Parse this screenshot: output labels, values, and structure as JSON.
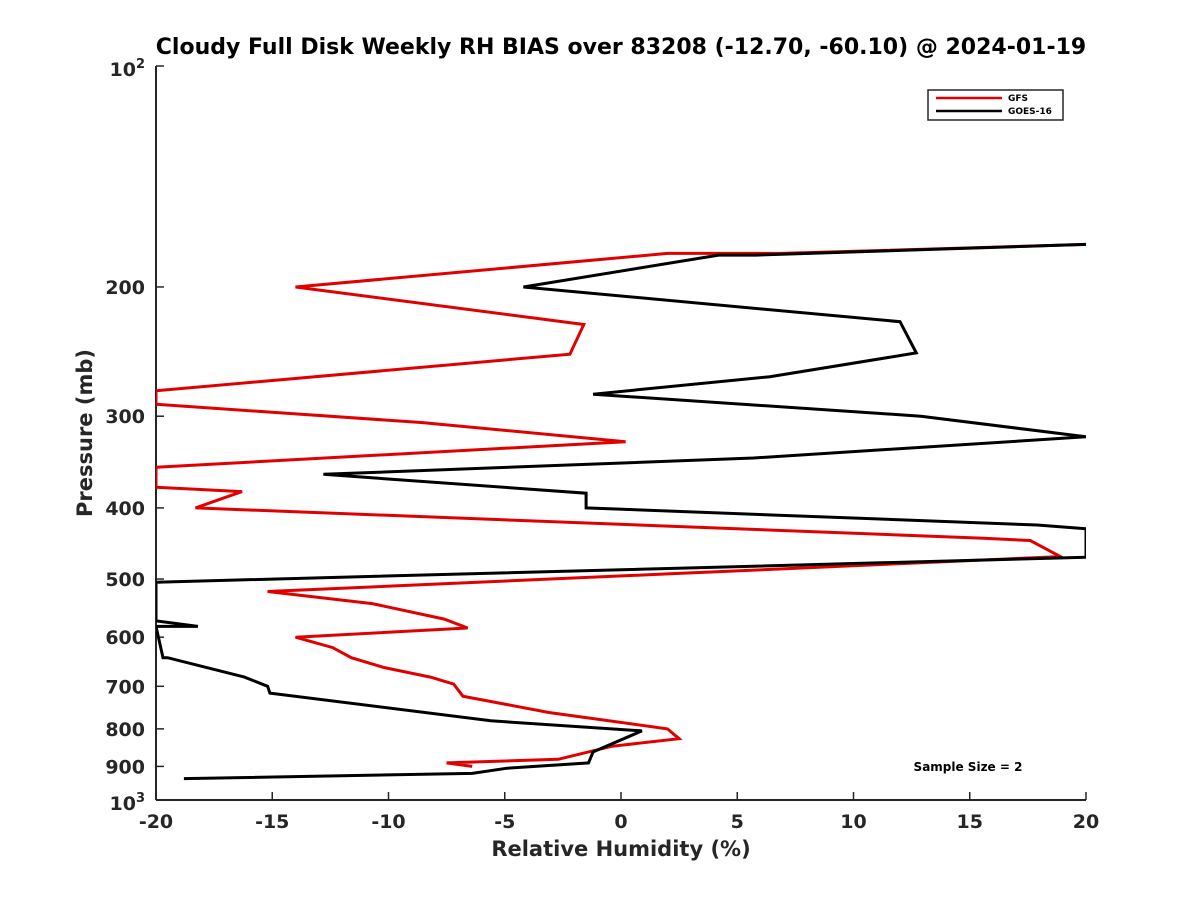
{
  "chart_data": {
    "type": "line",
    "title": "Cloudy Full Disk Weekly RH BIAS over 83208 (-12.70, -60.10) @ 2024-01-19",
    "xlabel": "Relative Humidity (%)",
    "ylabel": "Pressure (mb)",
    "xlim": [
      -20,
      20
    ],
    "ylim": [
      100,
      1000
    ],
    "yscale": "log",
    "yreverse": true,
    "x_ticks": [
      "-20",
      "-15",
      "-10",
      "-5",
      "0",
      "5",
      "10",
      "15",
      "20"
    ],
    "y_ticks": [
      {
        "value": 200,
        "label": "200"
      },
      {
        "value": 300,
        "label": "300"
      },
      {
        "value": 400,
        "label": "400"
      },
      {
        "value": 500,
        "label": "500"
      },
      {
        "value": 600,
        "label": "600"
      },
      {
        "value": 700,
        "label": "700"
      },
      {
        "value": 800,
        "label": "800"
      },
      {
        "value": 900,
        "label": "900"
      }
    ],
    "y_top_label": {
      "base": "10",
      "exp": "2"
    },
    "y_bottom_label": {
      "base": "10",
      "exp": "3"
    },
    "legend_position": "top-right",
    "series": [
      {
        "name": "GFS",
        "color": "#e00000",
        "x": [
          20,
          6.9,
          2.0,
          -14.0,
          -1.6,
          -2.2,
          -20,
          -20,
          -8.6,
          0.2,
          -20,
          -20,
          -16.3,
          -18.3,
          15.6,
          17.6,
          18.9,
          2.0,
          -15.2,
          -10.7,
          -7.6,
          -6.6,
          -14.0,
          -12.4,
          -11.6,
          -10.2,
          -8.2,
          -7.2,
          -6.8,
          -3.1,
          2.0,
          2.5,
          -0.4,
          -2.7,
          -7.5,
          -6.4
        ],
        "y": [
          175,
          180,
          180,
          200,
          225,
          247,
          277,
          289,
          306,
          325,
          352,
          375,
          380,
          400,
          440,
          443,
          466,
          492,
          520,
          540,
          567,
          583,
          600,
          620,
          640,
          660,
          680,
          695,
          722,
          760,
          800,
          825,
          845,
          880,
          890,
          900
        ]
      },
      {
        "name": "GOES-16",
        "color": "#000000",
        "x": [
          20,
          5.8,
          4.2,
          -4.2,
          12.0,
          12.7,
          6.4,
          -1.2,
          12.9,
          20,
          5.7,
          -12.8,
          -1.5,
          -1.5,
          17.9,
          20,
          20,
          -20,
          -20,
          -18.2,
          -20,
          -20,
          -19.7,
          -19.5,
          -16.2,
          -15.2,
          -15.1,
          -5.6,
          0.9,
          -1.2,
          -1.4,
          -4.9,
          -6.4,
          -18.8
        ],
        "y": [
          175,
          181,
          181,
          200,
          223,
          246,
          265,
          280,
          300,
          320,
          342,
          360,
          382,
          400,
          422,
          427,
          467,
          505,
          570,
          580,
          580,
          580,
          640,
          640,
          680,
          700,
          715,
          780,
          805,
          860,
          890,
          905,
          920,
          935
        ]
      }
    ],
    "annotation": "Sample Size = 2"
  }
}
